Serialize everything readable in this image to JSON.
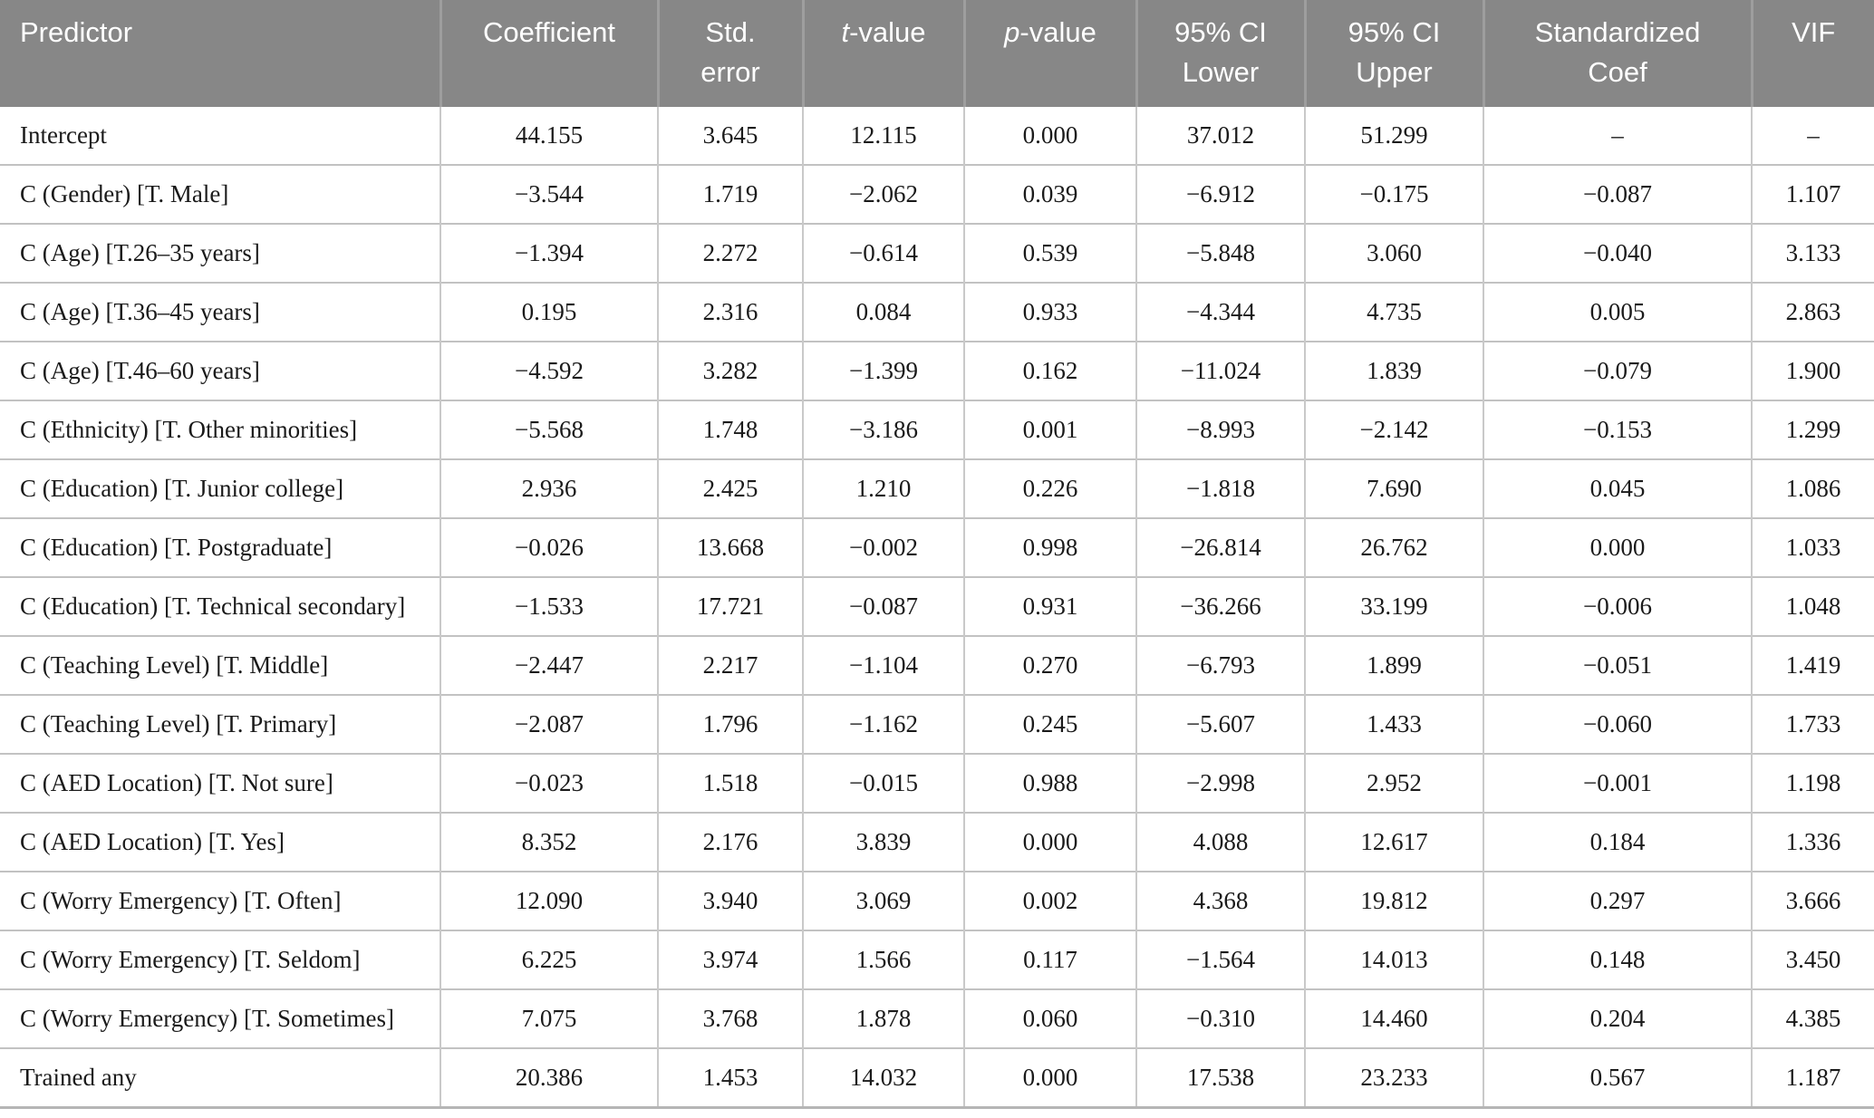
{
  "colors": {
    "header_bg": "#878787",
    "header_text": "#ffffff",
    "header_divider": "#9e9e9e",
    "row_border": "#c2c2c2",
    "cell_divider": "#c9c9c9",
    "table_bottom_border": "#b5b5b5",
    "body_text": "#1a1a1a"
  },
  "table": {
    "columns": [
      {
        "key": "predictor",
        "align": "left",
        "lines": [
          [
            {
              "t": "Predictor"
            }
          ]
        ]
      },
      {
        "key": "coefficient",
        "align": "center",
        "lines": [
          [
            {
              "t": "Coefficient"
            }
          ]
        ]
      },
      {
        "key": "std-error",
        "align": "center",
        "lines": [
          [
            {
              "t": "Std."
            }
          ],
          [
            {
              "t": "error"
            }
          ]
        ]
      },
      {
        "key": "t-value",
        "align": "center",
        "lines": [
          [
            {
              "t": "t",
              "i": true
            },
            {
              "t": "-value"
            }
          ]
        ]
      },
      {
        "key": "p-value",
        "align": "center",
        "lines": [
          [
            {
              "t": "p",
              "i": true
            },
            {
              "t": "-value"
            }
          ]
        ]
      },
      {
        "key": "ci-lower",
        "align": "center",
        "lines": [
          [
            {
              "t": "95% CI"
            }
          ],
          [
            {
              "t": "Lower"
            }
          ]
        ]
      },
      {
        "key": "ci-upper",
        "align": "center",
        "lines": [
          [
            {
              "t": "95% CI"
            }
          ],
          [
            {
              "t": "Upper"
            }
          ]
        ]
      },
      {
        "key": "std-coef",
        "align": "center",
        "lines": [
          [
            {
              "t": "Standardized"
            }
          ],
          [
            {
              "t": "Coef"
            }
          ]
        ]
      },
      {
        "key": "vif",
        "align": "center",
        "lines": [
          [
            {
              "t": "VIF"
            }
          ]
        ]
      }
    ],
    "rows": [
      [
        "Intercept",
        "44.155",
        "3.645",
        "12.115",
        "0.000",
        "37.012",
        "51.299",
        "–",
        "–"
      ],
      [
        "C (Gender) [T. Male]",
        "−3.544",
        "1.719",
        "−2.062",
        "0.039",
        "−6.912",
        "−0.175",
        "−0.087",
        "1.107"
      ],
      [
        "C (Age) [T.26–35 years]",
        "−1.394",
        "2.272",
        "−0.614",
        "0.539",
        "−5.848",
        "3.060",
        "−0.040",
        "3.133"
      ],
      [
        "C (Age) [T.36–45 years]",
        "0.195",
        "2.316",
        "0.084",
        "0.933",
        "−4.344",
        "4.735",
        "0.005",
        "2.863"
      ],
      [
        "C (Age) [T.46–60 years]",
        "−4.592",
        "3.282",
        "−1.399",
        "0.162",
        "−11.024",
        "1.839",
        "−0.079",
        "1.900"
      ],
      [
        "C (Ethnicity) [T. Other minorities]",
        "−5.568",
        "1.748",
        "−3.186",
        "0.001",
        "−8.993",
        "−2.142",
        "−0.153",
        "1.299"
      ],
      [
        "C (Education) [T. Junior college]",
        "2.936",
        "2.425",
        "1.210",
        "0.226",
        "−1.818",
        "7.690",
        "0.045",
        "1.086"
      ],
      [
        "C (Education) [T. Postgraduate]",
        "−0.026",
        "13.668",
        "−0.002",
        "0.998",
        "−26.814",
        "26.762",
        "0.000",
        "1.033"
      ],
      [
        "C (Education) [T. Technical secondary]",
        "−1.533",
        "17.721",
        "−0.087",
        "0.931",
        "−36.266",
        "33.199",
        "−0.006",
        "1.048"
      ],
      [
        "C (Teaching Level) [T. Middle]",
        "−2.447",
        "2.217",
        "−1.104",
        "0.270",
        "−6.793",
        "1.899",
        "−0.051",
        "1.419"
      ],
      [
        "C (Teaching Level) [T. Primary]",
        "−2.087",
        "1.796",
        "−1.162",
        "0.245",
        "−5.607",
        "1.433",
        "−0.060",
        "1.733"
      ],
      [
        "C (AED Location) [T. Not sure]",
        "−0.023",
        "1.518",
        "−0.015",
        "0.988",
        "−2.998",
        "2.952",
        "−0.001",
        "1.198"
      ],
      [
        "C (AED Location) [T. Yes]",
        "8.352",
        "2.176",
        "3.839",
        "0.000",
        "4.088",
        "12.617",
        "0.184",
        "1.336"
      ],
      [
        "C (Worry Emergency) [T. Often]",
        "12.090",
        "3.940",
        "3.069",
        "0.002",
        "4.368",
        "19.812",
        "0.297",
        "3.666"
      ],
      [
        "C (Worry Emergency) [T. Seldom]",
        "6.225",
        "3.974",
        "1.566",
        "0.117",
        "−1.564",
        "14.013",
        "0.148",
        "3.450"
      ],
      [
        "C (Worry Emergency) [T. Sometimes]",
        "7.075",
        "3.768",
        "1.878",
        "0.060",
        "−0.310",
        "14.460",
        "0.204",
        "4.385"
      ],
      [
        "Trained any",
        "20.386",
        "1.453",
        "14.032",
        "0.000",
        "17.538",
        "23.233",
        "0.567",
        "1.187"
      ]
    ]
  }
}
